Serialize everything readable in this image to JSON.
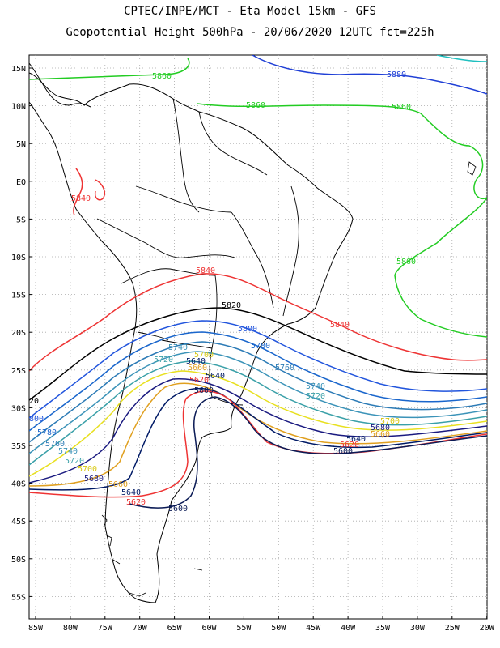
{
  "title": {
    "line1": "CPTEC/INPE/MCT -  Eta Model 15km - GFS",
    "line2": "Geopotential Height 500hPa - 20/06/2020 12UTC fct=225h"
  },
  "axes": {
    "lat_labels": [
      "15N",
      "10N",
      "5N",
      "EQ",
      "5S",
      "10S",
      "15S",
      "20S",
      "25S",
      "30S",
      "35S",
      "40S",
      "45S",
      "50S",
      "55S"
    ],
    "lon_labels": [
      "85W",
      "80W",
      "75W",
      "70W",
      "65W",
      "60W",
      "55W",
      "50W",
      "45W",
      "40W",
      "35W",
      "30W",
      "25W",
      "20W"
    ]
  },
  "contours": [
    {
      "level": "5880",
      "color": "#1f3fd6",
      "label_sets": [
        "5880"
      ]
    },
    {
      "level": "5860",
      "color": "#22cc22",
      "label_sets": [
        "5860",
        "5860",
        "5860",
        "5860"
      ]
    },
    {
      "level": "5840",
      "color": "#ee3333",
      "label_sets": [
        "5840",
        "5840",
        "5840"
      ]
    },
    {
      "level": "5820",
      "color": "#000000",
      "label_sets": [
        "5820",
        "20"
      ]
    },
    {
      "level": "5800",
      "color": "#2255dd",
      "label_sets": [
        "5800",
        "800"
      ]
    },
    {
      "level": "5780",
      "color": "#1a66cc",
      "label_sets": [
        "5780",
        "5780"
      ]
    },
    {
      "level": "5760",
      "color": "#2c7bb6",
      "label_sets": [
        "5760",
        "5760"
      ]
    },
    {
      "level": "5740",
      "color": "#3b93b8",
      "label_sets": [
        "5740",
        "5740",
        "5740"
      ]
    },
    {
      "level": "5720",
      "color": "#3aa0a8",
      "label_sets": [
        "5720",
        "5720",
        "5720"
      ]
    },
    {
      "level": "5700",
      "color": "#e8e020",
      "label_sets": [
        "5700",
        "5700",
        "5700"
      ]
    },
    {
      "level": "5680",
      "color": "#1a1a80",
      "label_sets": [
        "5680",
        "5680"
      ]
    },
    {
      "level": "5660",
      "color": "#e0a020",
      "label_sets": [
        "5660",
        "5660",
        "5660"
      ]
    },
    {
      "level": "5640",
      "color": "#001a66",
      "label_sets": [
        "5640",
        "5640",
        "5640",
        "5640"
      ]
    },
    {
      "level": "5620",
      "color": "#ee3333",
      "label_sets": [
        "5620",
        "5620",
        "5620"
      ]
    },
    {
      "level": "5600",
      "color": "#0a1a55",
      "label_sets": [
        "5600",
        "5600",
        "5600"
      ]
    }
  ],
  "colors": {
    "coast": "#000000",
    "grid": "#a0a0a0",
    "cyan_contour": "#20c0c0"
  }
}
